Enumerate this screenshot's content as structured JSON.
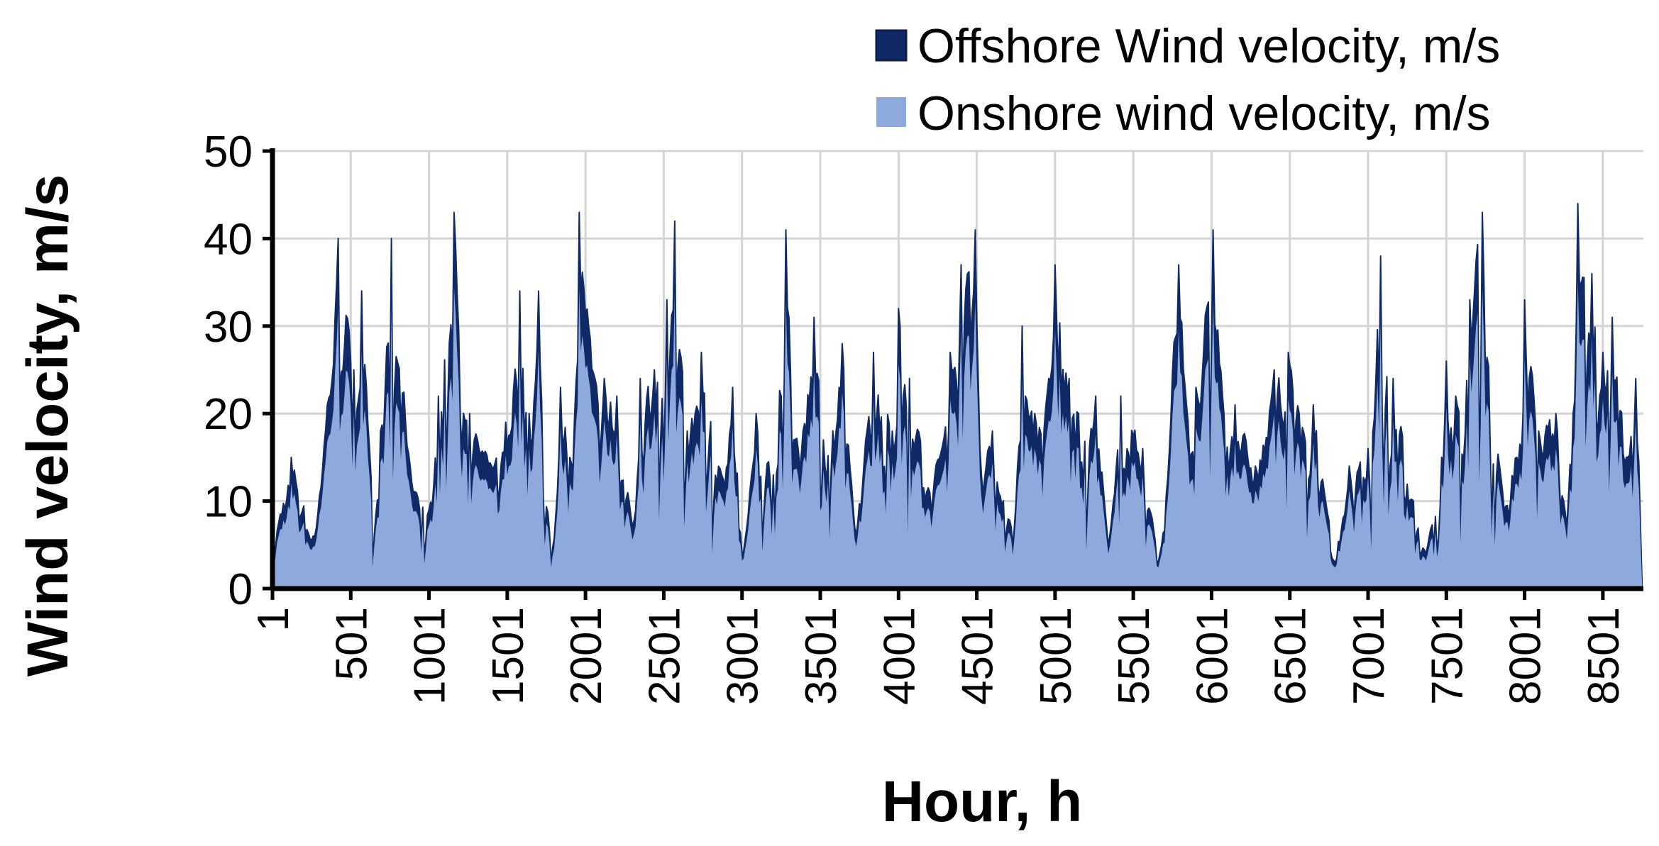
{
  "chart_data": {
    "type": "area",
    "xlabel": "Hour, h",
    "ylabel": "Wind velocity, m/s",
    "ylim": [
      0,
      50
    ],
    "xlim": [
      1,
      8760
    ],
    "y_ticks": [
      "0",
      "10",
      "20",
      "30",
      "40",
      "50"
    ],
    "x_ticks": [
      "1",
      "501",
      "1001",
      "1501",
      "2001",
      "2501",
      "3001",
      "3501",
      "4001",
      "4501",
      "5001",
      "5501",
      "6001",
      "6501",
      "7001",
      "7501",
      "8001",
      "8501"
    ],
    "grid": true,
    "legend_position": "top-right",
    "onshore_to_offshore_ratio": 0.8,
    "series": [
      {
        "name": "Offshore Wind velocity, m/s",
        "color": "#0f2a66",
        "x": [
          1,
          120,
          260,
          420,
          520,
          570,
          650,
          760,
          880,
          1000,
          1060,
          1160,
          1260,
          1400,
          1490,
          1580,
          1640,
          1700,
          1780,
          1840,
          1900,
          1960,
          2020,
          2120,
          2200,
          2300,
          2350,
          2440,
          2520,
          2570,
          2650,
          2740,
          2870,
          2940,
          3000,
          3090,
          3200,
          3280,
          3330,
          3460,
          3520,
          3640,
          3720,
          3840,
          3960,
          4000,
          4070,
          4200,
          4330,
          4400,
          4490,
          4520,
          4600,
          4720,
          4790,
          4870,
          4960,
          5000,
          5090,
          5150,
          5260,
          5340,
          5420,
          5560,
          5660,
          5790,
          5850,
          5900,
          6010,
          6070,
          6150,
          6280,
          6400,
          6490,
          6560,
          6650,
          6790,
          6880,
          7000,
          7080,
          7160,
          7290,
          7370,
          7500,
          7560,
          7650,
          7730,
          7860,
          7990,
          8000,
          8090,
          8200,
          8270,
          8340,
          8430,
          8500,
          8560,
          8650,
          8710,
          8760
        ],
        "values": [
          7,
          15,
          6,
          40,
          25,
          34,
          6,
          40,
          14,
          9,
          22,
          43,
          20,
          14,
          19,
          34,
          20,
          34,
          3,
          23,
          15,
          43,
          30,
          24,
          22,
          7,
          24,
          25,
          33,
          42,
          18,
          27,
          13,
          23,
          4,
          20,
          13,
          41,
          17,
          31,
          17,
          28,
          7,
          27,
          18,
          32,
          24,
          11,
          27,
          37,
          41,
          16,
          18,
          7,
          30,
          20,
          24,
          37,
          24,
          20,
          22,
          5,
          22,
          16,
          3,
          37,
          19,
          23,
          41,
          22,
          21,
          14,
          25,
          27,
          20,
          21,
          3,
          14,
          16,
          38,
          24,
          10,
          4,
          26,
          22,
          33,
          43,
          11,
          20,
          33,
          18,
          20,
          7,
          44,
          36,
          27,
          31,
          15,
          24,
          1
        ]
      },
      {
        "name": "Onshore wind velocity, m/s",
        "color": "#8ea9dc",
        "x": [],
        "values": []
      }
    ]
  }
}
